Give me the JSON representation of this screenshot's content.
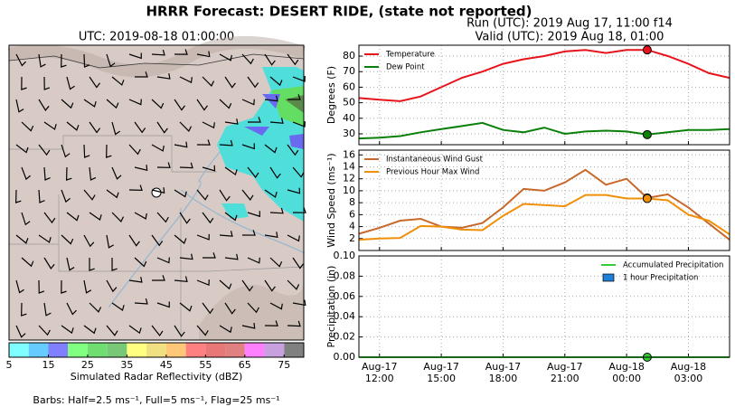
{
  "title": "HRRR Forecast: DESERT RIDE, (state not reported)",
  "run": "Run (UTC): 2019 Aug 17, 11:00 f14",
  "valid": "Valid (UTC): 2019 Aug 18, 01:00",
  "barbs_note": "Barbs: Half=2.5 ms⁻¹, Full=5 ms⁻¹, Flag=25 ms⁻¹",
  "chart_data": [
    {
      "type": "map",
      "title": "UTC: 2019-08-18 01:00:00"
    },
    {
      "type": "colorbar",
      "xlabel": "Simulated Radar Reflectivity (dBZ)",
      "bins": [
        5,
        10,
        15,
        20,
        25,
        30,
        35,
        40,
        45,
        50,
        55,
        60,
        65,
        70,
        75,
        80
      ],
      "colors": [
        "#7fffff",
        "#66ccff",
        "#8080ff",
        "#80ff80",
        "#70dd70",
        "#78c878",
        "#ffff80",
        "#f0e080",
        "#ffc878",
        "#ff8080",
        "#e87878",
        "#e08080",
        "#ff80ff",
        "#c8a0e0",
        "#808080"
      ],
      "xlim": [
        5,
        80
      ],
      "xticks": [
        5,
        15,
        25,
        35,
        45,
        55,
        65,
        75
      ]
    },
    {
      "type": "line",
      "ylabel": "Degrees (F)",
      "legend": "upper left",
      "grid": true,
      "x": [
        "2019-08-17T11:00",
        "2019-08-17T12:00",
        "2019-08-17T13:00",
        "2019-08-17T14:00",
        "2019-08-17T15:00",
        "2019-08-17T16:00",
        "2019-08-17T17:00",
        "2019-08-17T18:00",
        "2019-08-17T19:00",
        "2019-08-17T20:00",
        "2019-08-17T21:00",
        "2019-08-17T22:00",
        "2019-08-17T23:00",
        "2019-08-18T00:00",
        "2019-08-18T01:00",
        "2019-08-18T02:00",
        "2019-08-18T03:00",
        "2019-08-18T04:00",
        "2019-08-18T05:00"
      ],
      "xlim": [
        "2019-08-17T11:00",
        "2019-08-18T05:00"
      ],
      "xticks": [
        "2019-08-17T12:00",
        "2019-08-17T15:00",
        "2019-08-17T18:00",
        "2019-08-17T21:00",
        "2019-08-18T00:00",
        "2019-08-18T03:00"
      ],
      "marker_x": "2019-08-18T01:00",
      "ylim": [
        23,
        87
      ],
      "yticks": [
        30,
        40,
        50,
        60,
        70,
        80
      ],
      "series": [
        {
          "name": "Temperature",
          "color": "#e8141c",
          "type": "line",
          "values": [
            53,
            52,
            51,
            54,
            60,
            66,
            70,
            75,
            78,
            80,
            83,
            84,
            82,
            84,
            84,
            80,
            75,
            69,
            66
          ]
        },
        {
          "name": "Dew Point",
          "color": "#0a800a",
          "type": "line",
          "values": [
            27,
            27.5,
            28.5,
            31,
            33,
            35,
            37,
            32.5,
            31,
            34,
            30,
            31.5,
            32,
            31.5,
            29.5,
            31,
            32.5,
            32.5,
            33
          ]
        }
      ]
    },
    {
      "type": "line",
      "ylabel": "Wind Speed (ms⁻¹)",
      "legend": "upper left",
      "grid": true,
      "x": [
        "2019-08-17T11:00",
        "2019-08-17T12:00",
        "2019-08-17T13:00",
        "2019-08-17T14:00",
        "2019-08-17T15:00",
        "2019-08-17T16:00",
        "2019-08-17T17:00",
        "2019-08-17T18:00",
        "2019-08-17T19:00",
        "2019-08-17T20:00",
        "2019-08-17T21:00",
        "2019-08-17T22:00",
        "2019-08-17T23:00",
        "2019-08-18T00:00",
        "2019-08-18T01:00",
        "2019-08-18T02:00",
        "2019-08-18T03:00",
        "2019-08-18T04:00",
        "2019-08-18T05:00"
      ],
      "xlim": [
        "2019-08-17T11:00",
        "2019-08-18T05:00"
      ],
      "xticks": [
        "2019-08-17T12:00",
        "2019-08-17T15:00",
        "2019-08-17T18:00",
        "2019-08-17T21:00",
        "2019-08-18T00:00",
        "2019-08-18T03:00"
      ],
      "marker_x": "2019-08-18T01:00",
      "ylim": [
        0,
        16.8
      ],
      "yticks": [
        2,
        4,
        6,
        8,
        10,
        12,
        14,
        16
      ],
      "series": [
        {
          "name": "Instantaneous Wind Gust",
          "color": "#c8682a",
          "type": "line",
          "values": [
            2.8,
            3.8,
            5,
            5.3,
            4,
            3.8,
            4.6,
            7.2,
            10.3,
            10,
            11.4,
            13.5,
            11,
            12,
            8.8,
            9.4,
            7.2,
            4.5,
            1.8
          ]
        },
        {
          "name": "Previous Hour Max Wind",
          "color": "#f0900a",
          "type": "line",
          "values": [
            1.8,
            2,
            2.1,
            4.1,
            4,
            3.5,
            3.4,
            5.8,
            7.8,
            7.6,
            7.4,
            9.3,
            9.3,
            8.7,
            8.7,
            8.4,
            6,
            5,
            2.7
          ]
        }
      ]
    },
    {
      "type": "line",
      "ylabel": "Precipitation (in)",
      "legend": "upper right",
      "grid": true,
      "x": [
        "2019-08-17T11:00",
        "2019-08-17T12:00",
        "2019-08-17T13:00",
        "2019-08-17T14:00",
        "2019-08-17T15:00",
        "2019-08-17T16:00",
        "2019-08-17T17:00",
        "2019-08-17T18:00",
        "2019-08-17T19:00",
        "2019-08-17T20:00",
        "2019-08-17T21:00",
        "2019-08-17T22:00",
        "2019-08-17T23:00",
        "2019-08-18T00:00",
        "2019-08-18T01:00",
        "2019-08-18T02:00",
        "2019-08-18T03:00",
        "2019-08-18T04:00",
        "2019-08-18T05:00"
      ],
      "xlim": [
        "2019-08-17T11:00",
        "2019-08-18T05:00"
      ],
      "xticks": [
        {
          "value": "2019-08-17T12:00",
          "label": "Aug-17\n12:00"
        },
        {
          "value": "2019-08-17T15:00",
          "label": "Aug-17\n15:00"
        },
        {
          "value": "2019-08-17T18:00",
          "label": "Aug-17\n18:00"
        },
        {
          "value": "2019-08-17T21:00",
          "label": "Aug-17\n21:00"
        },
        {
          "value": "2019-08-18T00:00",
          "label": "Aug-18\n00:00"
        },
        {
          "value": "2019-08-18T03:00",
          "label": "Aug-18\n03:00"
        }
      ],
      "marker_x": "2019-08-18T01:00",
      "ylim": [
        0,
        0.1
      ],
      "yticks": [
        {
          "value": 0,
          "label": "0.00"
        },
        {
          "value": 0.02,
          "label": "0.02"
        },
        {
          "value": 0.04,
          "label": "0.04"
        },
        {
          "value": 0.06,
          "label": "0.06"
        },
        {
          "value": 0.08,
          "label": "0.08"
        },
        {
          "value": 0.1,
          "label": "0.10"
        }
      ],
      "series": [
        {
          "name": "Accumulated Precipitation",
          "color": "#33cc33",
          "type": "line",
          "values": [
            0,
            0,
            0,
            0,
            0,
            0,
            0,
            0,
            0,
            0,
            0,
            0,
            0,
            0,
            0,
            0,
            0,
            0,
            0
          ]
        },
        {
          "name": "1 hour Precipitation",
          "color": "#1e7fd8",
          "type": "bar",
          "values": [
            0,
            0,
            0,
            0,
            0,
            0,
            0,
            0,
            0,
            0,
            0,
            0,
            0,
            0,
            0,
            0,
            0,
            0,
            0
          ]
        }
      ]
    }
  ]
}
